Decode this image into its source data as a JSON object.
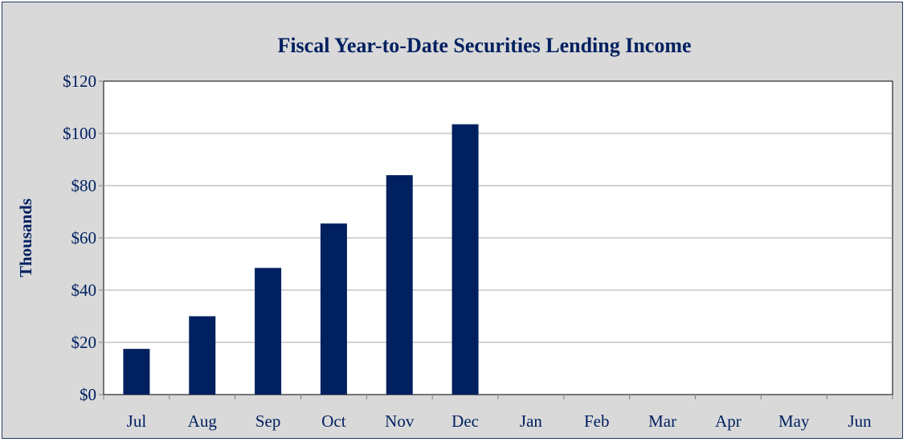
{
  "chart_data": {
    "type": "bar",
    "title": "Fiscal Year-to-Date Securities Lending Income",
    "ylabel": "Thousands",
    "xlabel": "",
    "categories": [
      "Jul",
      "Aug",
      "Sep",
      "Oct",
      "Nov",
      "Dec",
      "Jan",
      "Feb",
      "Mar",
      "Apr",
      "May",
      "Jun"
    ],
    "values": [
      17.5,
      30,
      48.5,
      65.5,
      84,
      103.5,
      null,
      null,
      null,
      null,
      null,
      null
    ],
    "ylim": [
      0,
      120
    ],
    "yticks": [
      0,
      20,
      40,
      60,
      80,
      100,
      120
    ],
    "ytick_labels": [
      "$0",
      "$20",
      "$40",
      "$60",
      "$80",
      "$100",
      "$120"
    ],
    "grid": true,
    "legend": "none",
    "bar_color": "#002060",
    "background_color": "#d9d9d9",
    "plot_background_color": "#ffffff"
  }
}
